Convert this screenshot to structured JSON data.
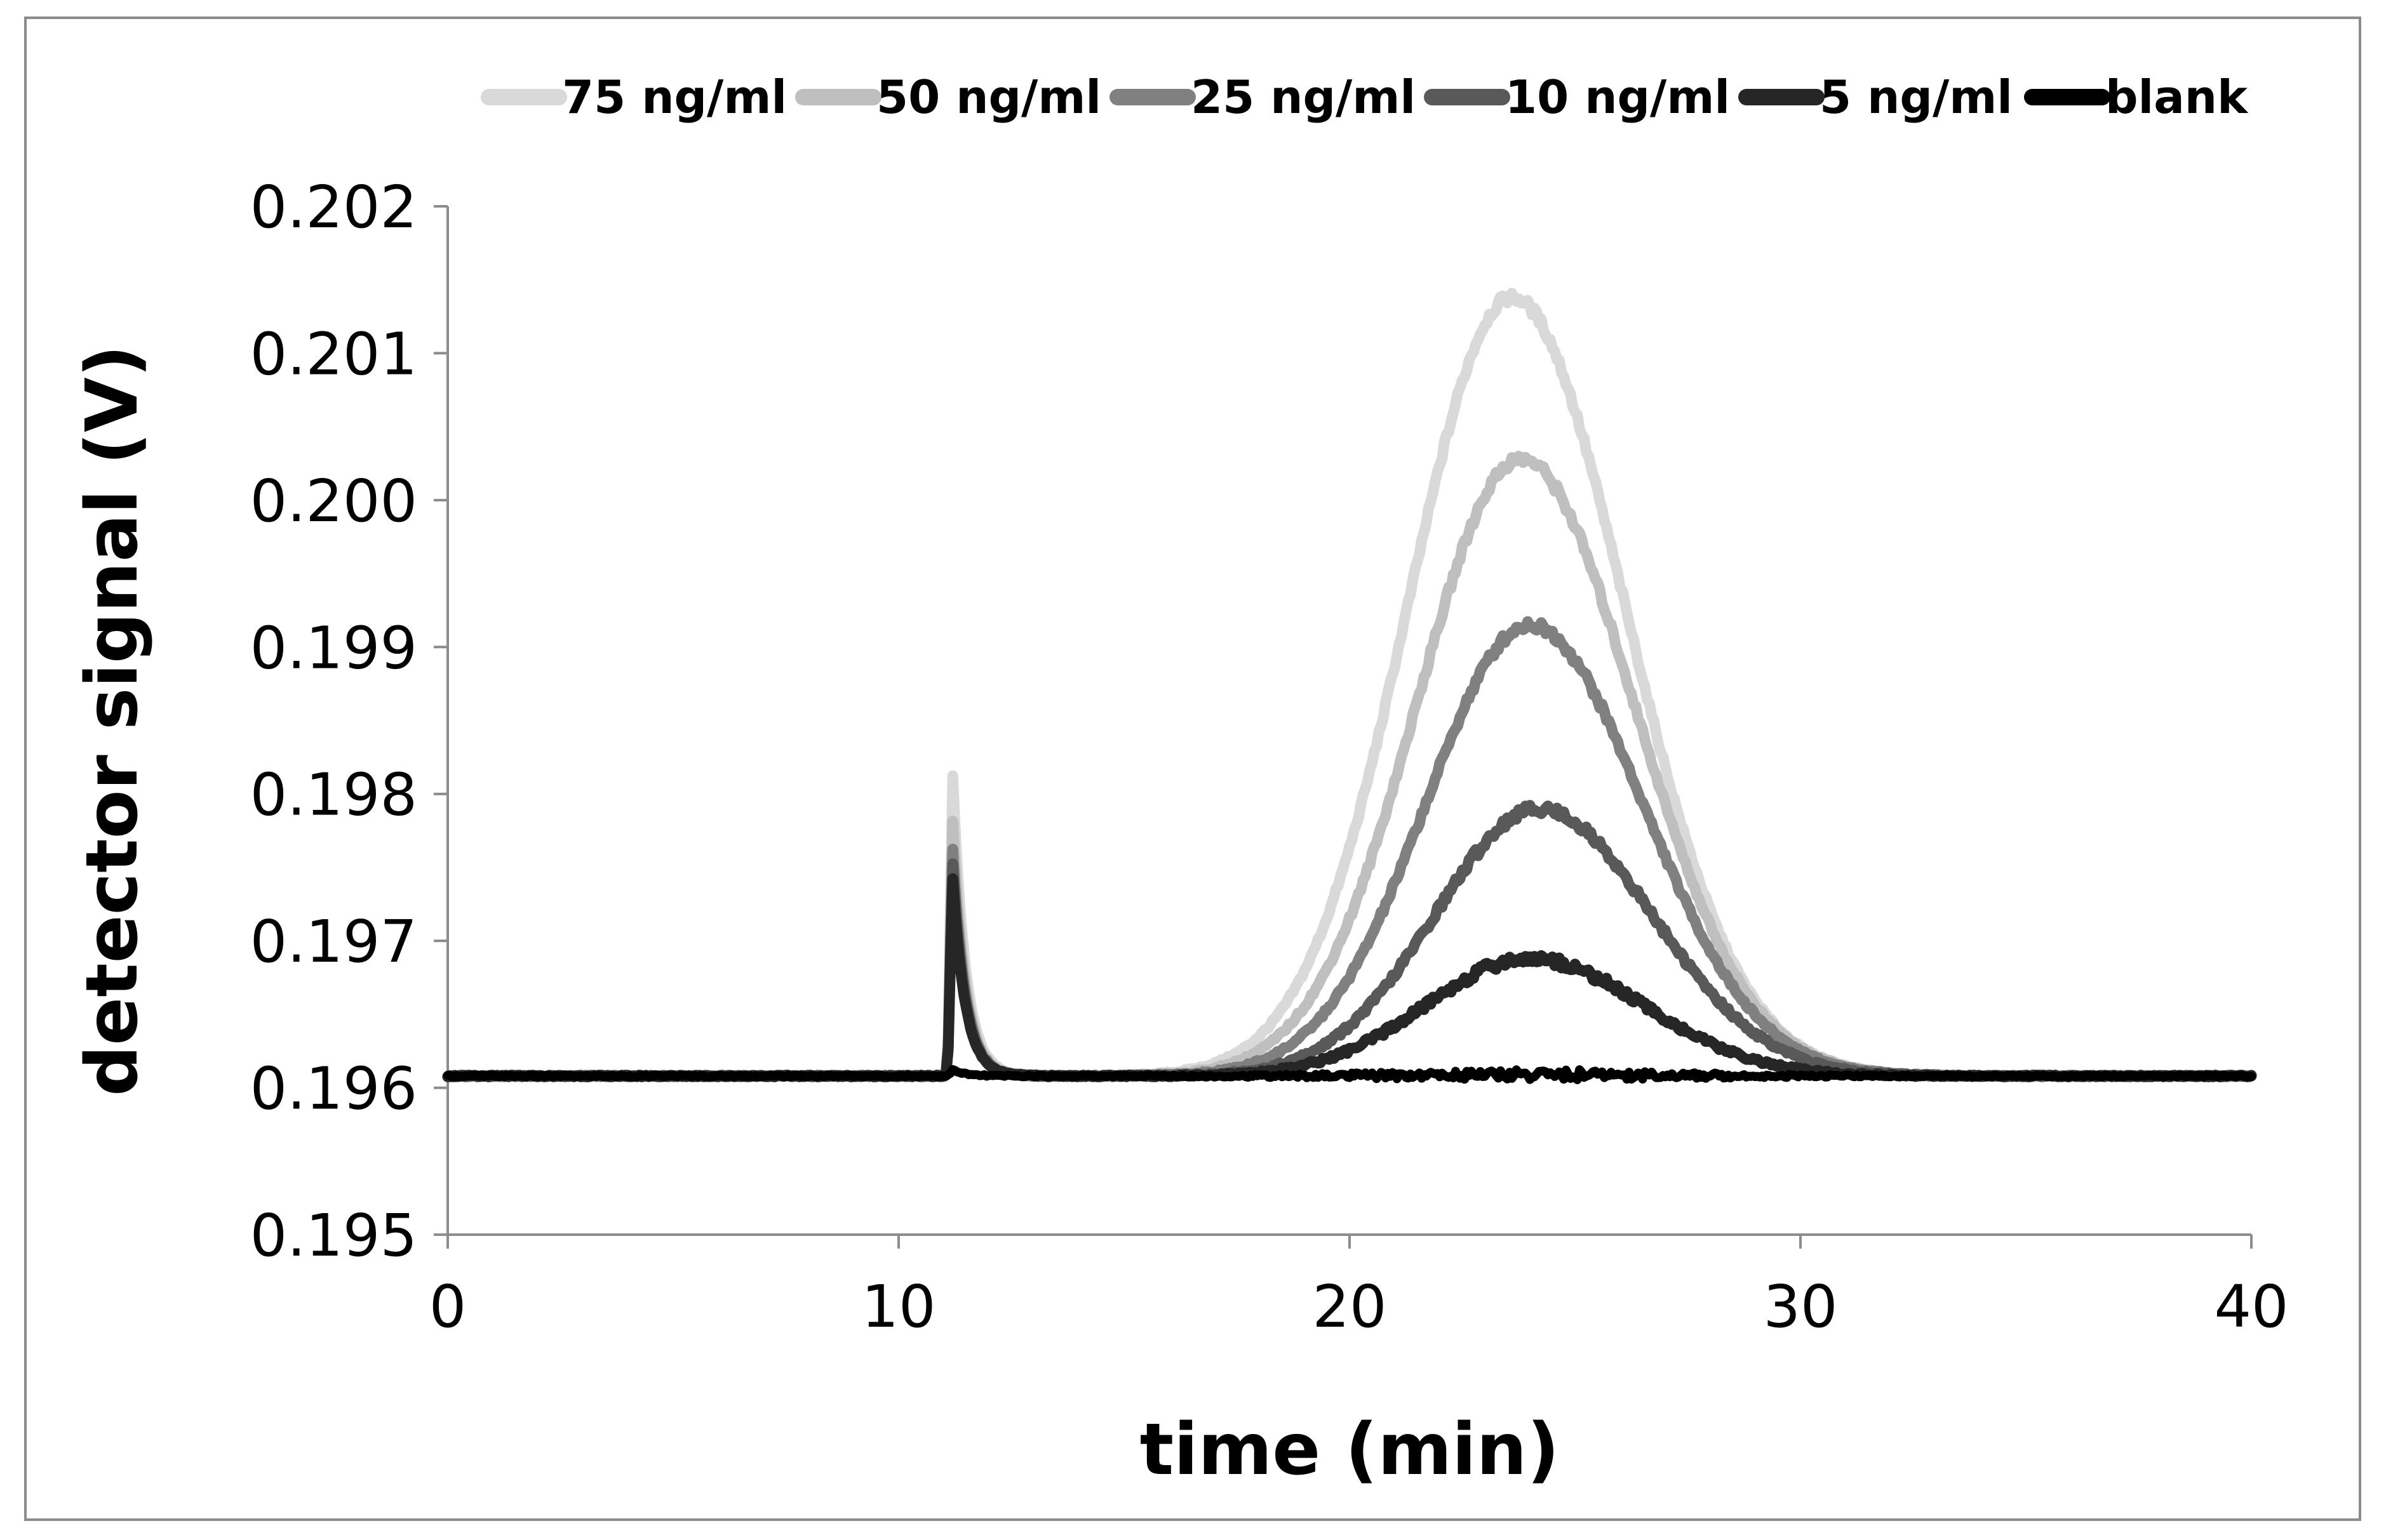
{
  "chart_data": {
    "type": "line",
    "title": "",
    "xlabel": "time (min)",
    "ylabel": "detector signal (V)",
    "xlim": [
      0,
      40
    ],
    "ylim": [
      0.195,
      0.202
    ],
    "xticks": [
      0,
      10,
      20,
      30,
      40
    ],
    "xtick_labels": [
      "0",
      "10",
      "20",
      "30",
      "40"
    ],
    "yticks": [
      0.195,
      0.196,
      0.197,
      0.198,
      0.199,
      0.2,
      0.201,
      0.202
    ],
    "ytick_labels": [
      "0.195",
      "0.196",
      "0.197",
      "0.198",
      "0.199",
      "0.200",
      "0.201",
      "0.202"
    ],
    "grid": false,
    "legend_position": "top",
    "baseline": 0.19608,
    "series": [
      {
        "name": "75 ng/ml",
        "color": "#d9d9d9",
        "spike_x": 11.2,
        "spike_y": 0.19812,
        "peak_x": 23.6,
        "peak_y": 0.20138
      },
      {
        "name": "50 ng/ml",
        "color": "#bfbfbf",
        "spike_x": 11.2,
        "spike_y": 0.19782,
        "peak_x": 23.8,
        "peak_y": 0.20028
      },
      {
        "name": "25 ng/ml",
        "color": "#808080",
        "spike_x": 11.2,
        "spike_y": 0.19762,
        "peak_x": 24.0,
        "peak_y": 0.19915
      },
      {
        "name": "10 ng/ml",
        "color": "#595959",
        "spike_x": 11.2,
        "spike_y": 0.19752,
        "peak_x": 24.2,
        "peak_y": 0.1979
      },
      {
        "name": "5 ng/ml",
        "color": "#262626",
        "spike_x": 11.2,
        "spike_y": 0.19742,
        "peak_x": 24.0,
        "peak_y": 0.19688
      },
      {
        "name": "blank",
        "color": "#000000",
        "spike_x": 11.2,
        "spike_y": 0.19612,
        "peak_x": 24.0,
        "peak_y": 0.19609
      }
    ]
  }
}
